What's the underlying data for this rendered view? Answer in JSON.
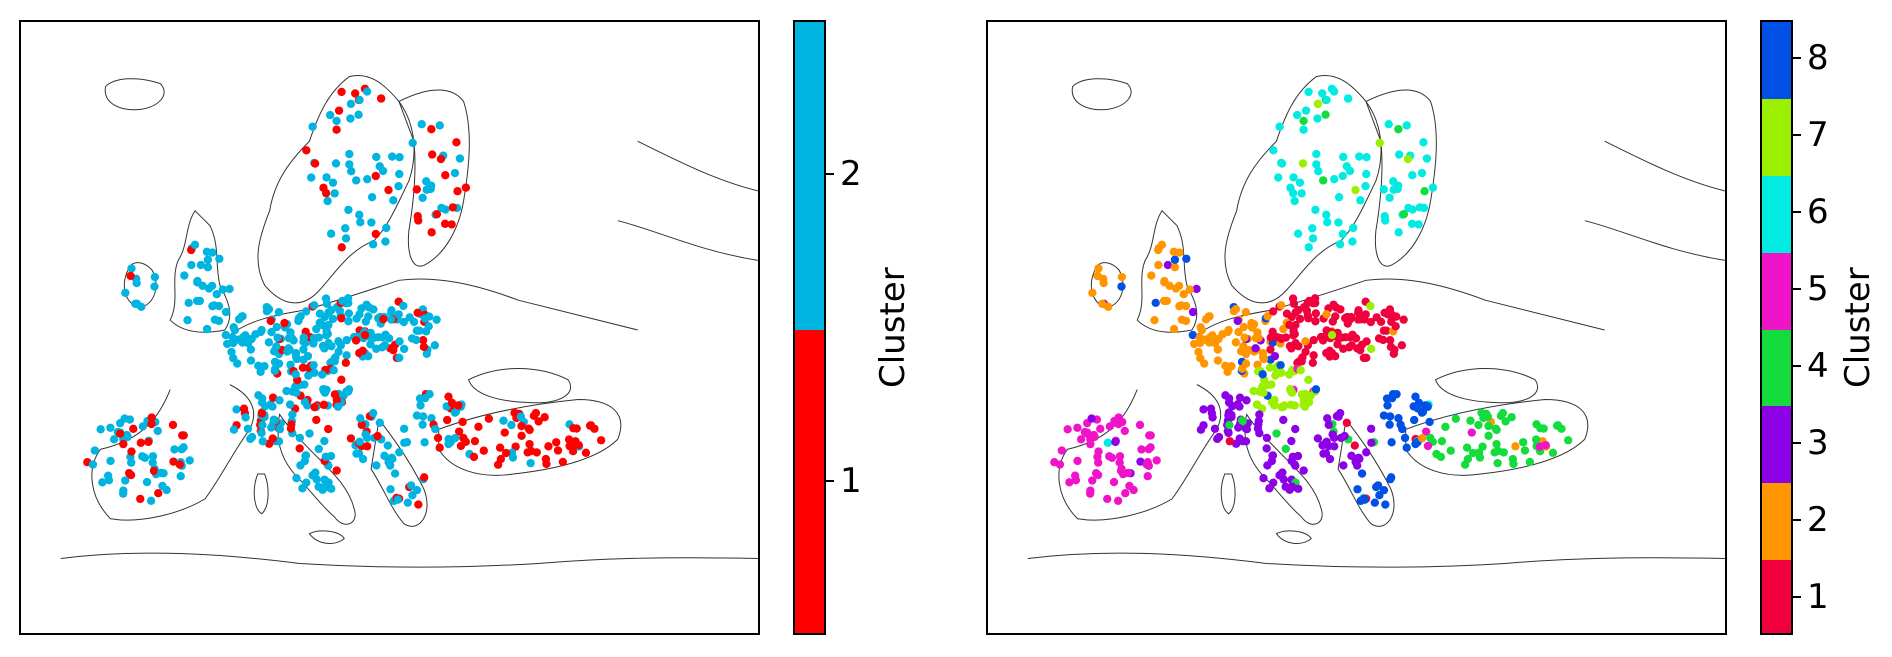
{
  "panels": [
    {
      "id": "left",
      "colorbar": {
        "label": "Cluster",
        "ticks": [
          "1",
          "2"
        ],
        "colors": [
          "#ff0000",
          "#00b4e0"
        ]
      }
    },
    {
      "id": "right",
      "colorbar": {
        "label": "Cluster",
        "ticks": [
          "1",
          "2",
          "3",
          "4",
          "5",
          "6",
          "7",
          "8"
        ],
        "colors": [
          "#f0003c",
          "#ff9600",
          "#8c00e6",
          "#14dc3c",
          "#f014c8",
          "#00ebe1",
          "#9bf000",
          "#0050e6"
        ]
      }
    }
  ],
  "chart_data": [
    {
      "type": "scatter",
      "title": "",
      "legend": "colorbar-right",
      "colorbar_label": "Cluster",
      "series": [
        {
          "name": "1",
          "color": "#ff0000"
        },
        {
          "name": "2",
          "color": "#00b4e0"
        }
      ]
    },
    {
      "type": "scatter",
      "title": "",
      "legend": "colorbar-right",
      "colorbar_label": "Cluster",
      "series": [
        {
          "name": "1",
          "color": "#f0003c"
        },
        {
          "name": "2",
          "color": "#ff9600"
        },
        {
          "name": "3",
          "color": "#8c00e6"
        },
        {
          "name": "4",
          "color": "#14dc3c"
        },
        {
          "name": "5",
          "color": "#f014c8"
        },
        {
          "name": "6",
          "color": "#00ebe1"
        },
        {
          "name": "7",
          "color": "#9bf000"
        },
        {
          "name": "8",
          "color": "#0050e6"
        }
      ]
    }
  ]
}
